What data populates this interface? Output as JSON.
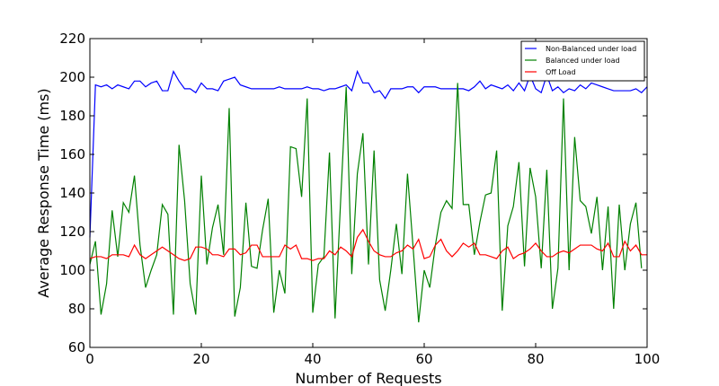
{
  "chart_data": {
    "type": "line",
    "title": "",
    "xlabel": "Number of Requests",
    "ylabel": "Average Response Time (ms)",
    "xlim": [
      0,
      100
    ],
    "ylim": [
      60,
      220
    ],
    "xticks": [
      0,
      20,
      40,
      60,
      80,
      100
    ],
    "yticks": [
      60,
      80,
      100,
      120,
      140,
      160,
      180,
      200,
      220
    ],
    "grid": false,
    "legend_position": "top-right",
    "series": [
      {
        "name": "Non-Balanced under load",
        "color": "#0000ff",
        "values": [
          117,
          196,
          195,
          196,
          194,
          196,
          195,
          194,
          198,
          198,
          195,
          197,
          198,
          193,
          193,
          203,
          198,
          194,
          194,
          192,
          197,
          194,
          194,
          193,
          198,
          199,
          200,
          196,
          195,
          194,
          194,
          194,
          194,
          194,
          195,
          194,
          194,
          194,
          194,
          195,
          194,
          194,
          193,
          194,
          194,
          195,
          196,
          193,
          203,
          197,
          197,
          192,
          193,
          189,
          194,
          194,
          194,
          195,
          195,
          192,
          195,
          195,
          195,
          194,
          194,
          194,
          194,
          194,
          193,
          195,
          198,
          194,
          196,
          195,
          194,
          196,
          193,
          197,
          193,
          201,
          194,
          192,
          201,
          193,
          195,
          192,
          194,
          193,
          196,
          194,
          197,
          196,
          195,
          194,
          193,
          193,
          193,
          193,
          194,
          192,
          195
        ]
      },
      {
        "name": "Balanced under load",
        "color": "#008000",
        "values": [
          103,
          115,
          77,
          93,
          131,
          107,
          135,
          130,
          149,
          113,
          91,
          100,
          108,
          134,
          129,
          77,
          165,
          136,
          93,
          77,
          149,
          103,
          122,
          134,
          108,
          184,
          76,
          91,
          135,
          102,
          101,
          121,
          137,
          78,
          100,
          88,
          164,
          163,
          138,
          189,
          78,
          103,
          107,
          161,
          75,
          136,
          195,
          98,
          150,
          171,
          103,
          162,
          95,
          79,
          100,
          124,
          98,
          150,
          112,
          73,
          100,
          91,
          113,
          130,
          136,
          132,
          197,
          134,
          134,
          108,
          125,
          139,
          140,
          162,
          79,
          123,
          133,
          156,
          102,
          153,
          138,
          101,
          152,
          80,
          101,
          189,
          100,
          169,
          136,
          133,
          119,
          138,
          100,
          133,
          80,
          134,
          100,
          124,
          135,
          101
        ]
      },
      {
        "name": "Off Load",
        "color": "#ff0000",
        "values": [
          106,
          107,
          107,
          106,
          108,
          108,
          108,
          107,
          113,
          108,
          106,
          108,
          110,
          112,
          110,
          108,
          106,
          105,
          106,
          112,
          112,
          111,
          108,
          108,
          107,
          111,
          111,
          108,
          109,
          113,
          113,
          107,
          107,
          107,
          107,
          113,
          111,
          113,
          106,
          106,
          105,
          106,
          106,
          110,
          108,
          112,
          110,
          107,
          117,
          121,
          115,
          110,
          108,
          107,
          107,
          109,
          110,
          113,
          111,
          116,
          106,
          107,
          113,
          116,
          110,
          107,
          110,
          114,
          112,
          114,
          108,
          108,
          107,
          106,
          110,
          112,
          106,
          108,
          109,
          111,
          114,
          110,
          107,
          107,
          109,
          110,
          109,
          111,
          113,
          113,
          113,
          111,
          110,
          114,
          107,
          107,
          115,
          110,
          113,
          108,
          108
        ]
      }
    ]
  }
}
